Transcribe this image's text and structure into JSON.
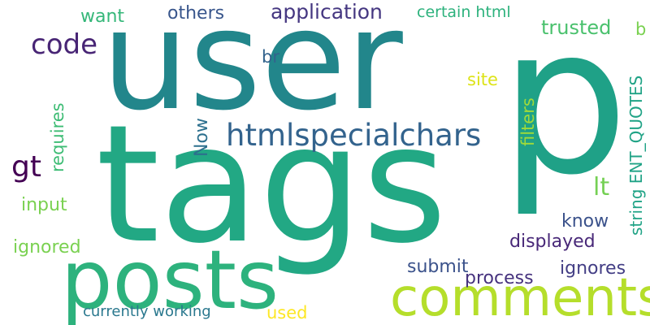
{
  "word_cloud": {
    "words": [
      {
        "id": "user",
        "text": "user",
        "color": "#22868b"
      },
      {
        "id": "p",
        "text": "p",
        "color": "#1fa187"
      },
      {
        "id": "tags",
        "text": "tags",
        "color": "#22a884"
      },
      {
        "id": "posts",
        "text": "posts",
        "color": "#2db27d"
      },
      {
        "id": "comments",
        "text": "comments",
        "color": "#b5de2b"
      },
      {
        "id": "htmlspecialchars",
        "text": "htmlspecialchars",
        "color": "#33638d"
      },
      {
        "id": "code",
        "text": "code",
        "color": "#482575"
      },
      {
        "id": "gt",
        "text": "gt",
        "color": "#440154"
      },
      {
        "id": "application",
        "text": "application",
        "color": "#453781"
      },
      {
        "id": "others",
        "text": "others",
        "color": "#39568c"
      },
      {
        "id": "want",
        "text": "want",
        "color": "#35b779"
      },
      {
        "id": "certain_html",
        "text": "certain html",
        "color": "#2db27d"
      },
      {
        "id": "trusted",
        "text": "trusted",
        "color": "#4ac16d"
      },
      {
        "id": "b",
        "text": "b",
        "color": "#7ad151"
      },
      {
        "id": "br",
        "text": "br",
        "color": "#33638d"
      },
      {
        "id": "site",
        "text": "site",
        "color": "#dde318"
      },
      {
        "id": "filters",
        "text": "filters",
        "color": "#a0da39"
      },
      {
        "id": "string_ent_quotes",
        "text": "string ENT_QUOTES",
        "color": "#20a386"
      },
      {
        "id": "requires",
        "text": "requires",
        "color": "#3dbc74"
      },
      {
        "id": "now",
        "text": "Now",
        "color": "#2d708e"
      },
      {
        "id": "lt",
        "text": "lt",
        "color": "#75d054"
      },
      {
        "id": "input",
        "text": "input",
        "color": "#7ad151"
      },
      {
        "id": "know",
        "text": "know",
        "color": "#3b528b"
      },
      {
        "id": "displayed",
        "text": "displayed",
        "color": "#482878"
      },
      {
        "id": "ignored",
        "text": "ignored",
        "color": "#7ad151"
      },
      {
        "id": "submit",
        "text": "submit",
        "color": "#3b528b"
      },
      {
        "id": "ignores",
        "text": "ignores",
        "color": "#433e85"
      },
      {
        "id": "process",
        "text": "process",
        "color": "#46327e"
      },
      {
        "id": "currently_working",
        "text": "currently working",
        "color": "#2a788e"
      },
      {
        "id": "used",
        "text": "used",
        "color": "#fde725"
      }
    ]
  }
}
